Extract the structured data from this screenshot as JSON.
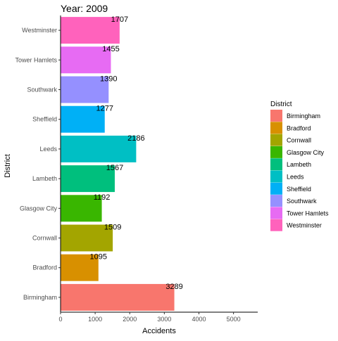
{
  "chart_data": {
    "type": "bar",
    "orientation": "horizontal",
    "title": "Year: 2009",
    "xlabel": "Accidents",
    "ylabel": "District",
    "xlim": [
      0,
      5700
    ],
    "x_ticks": [
      0,
      1000,
      2000,
      3000,
      4000,
      5000
    ],
    "categories": [
      "Birmingham",
      "Bradford",
      "Cornwall",
      "Glasgow City",
      "Lambeth",
      "Leeds",
      "Sheffield",
      "Southwark",
      "Tower Hamlets",
      "Westminster"
    ],
    "values": [
      3289,
      1095,
      1509,
      1192,
      1567,
      2186,
      1277,
      1390,
      1455,
      1707
    ],
    "colors": [
      "#F8766D",
      "#D89000",
      "#A3A500",
      "#39B600",
      "#00BF7D",
      "#00BFC4",
      "#00B0F6",
      "#9590FF",
      "#E76BF3",
      "#FF62BC"
    ],
    "grid": false,
    "legend": {
      "title": "District",
      "position": "right",
      "entries": [
        "Birmingham",
        "Bradford",
        "Cornwall",
        "Glasgow City",
        "Lambeth",
        "Leeds",
        "Sheffield",
        "Southwark",
        "Tower Hamlets",
        "Westminster"
      ]
    }
  }
}
